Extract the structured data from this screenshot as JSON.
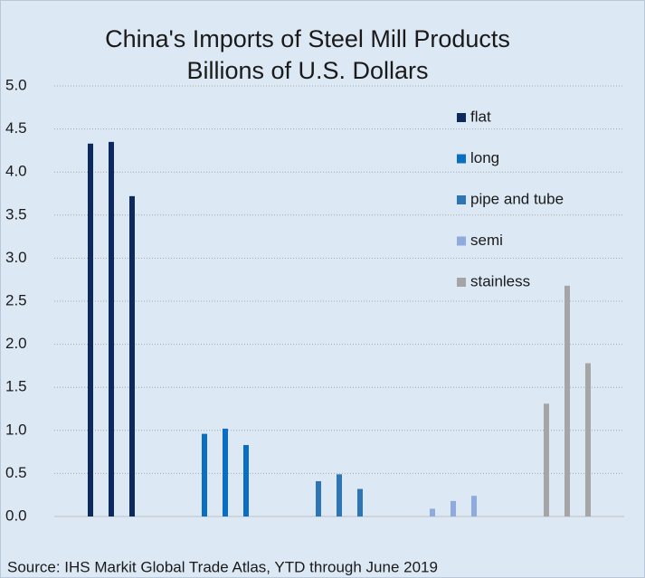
{
  "chart_data": {
    "type": "bar",
    "title": "China's Imports of Steel Mill Products",
    "subtitle": "Billions of U.S. Dollars",
    "source": "Source: IHS Markit Global Trade Atlas, YTD through June 2019",
    "categories": [
      null,
      null,
      null
    ],
    "series": [
      {
        "name": "flat",
        "color": "#0d2a5e",
        "values": [
          4.33,
          4.35,
          3.72
        ]
      },
      {
        "name": "long",
        "color": "#0a6fc2",
        "values": [
          0.96,
          1.02,
          0.83
        ]
      },
      {
        "name": "pipe and tube",
        "color": "#2e75b6",
        "values": [
          0.41,
          0.49,
          0.32
        ]
      },
      {
        "name": "semi",
        "color": "#8faadc",
        "values": [
          0.09,
          0.18,
          0.24
        ]
      },
      {
        "name": "stainless",
        "color": "#a5a5a5",
        "values": [
          1.31,
          2.68,
          1.78
        ]
      }
    ],
    "ylim": [
      0,
      5
    ],
    "yticks": [
      {
        "value": 0,
        "label": "0.0"
      },
      {
        "value": 0.5,
        "label": "0.5"
      },
      {
        "value": 1,
        "label": "1.0"
      },
      {
        "value": 1.5,
        "label": "1.5"
      },
      {
        "value": 2,
        "label": "2.0"
      },
      {
        "value": 2.5,
        "label": "2.5"
      },
      {
        "value": 3,
        "label": "3.0"
      },
      {
        "value": 3.5,
        "label": "3.5"
      },
      {
        "value": 4,
        "label": "4.0"
      },
      {
        "value": 4.5,
        "label": "4.5"
      },
      {
        "value": 5,
        "label": "5.0"
      }
    ],
    "grid": true,
    "legend": "upper right"
  }
}
